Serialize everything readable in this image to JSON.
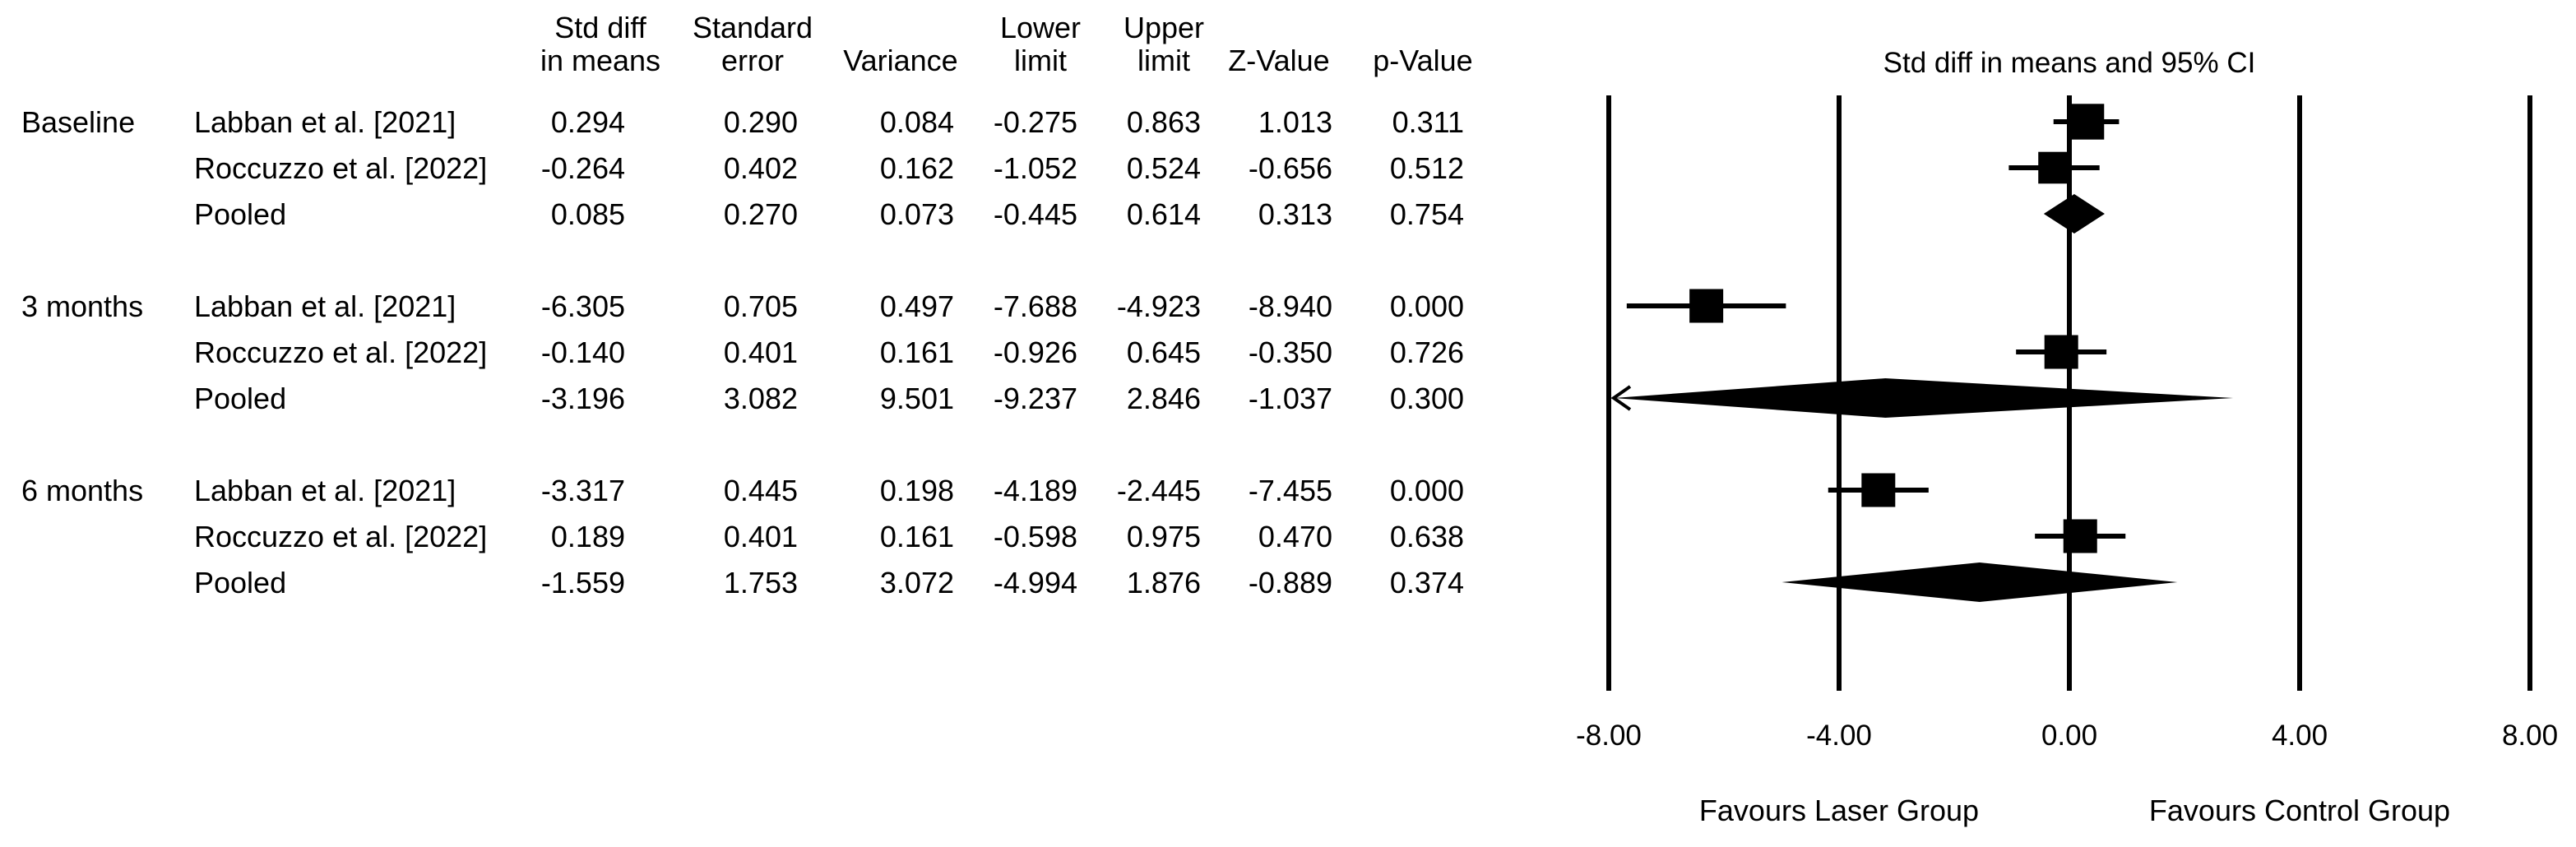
{
  "table": {
    "headers": {
      "std_diff": [
        "Std diff",
        "in means"
      ],
      "se": [
        "Standard",
        "error"
      ],
      "variance": [
        "Variance"
      ],
      "lower": [
        "Lower",
        "limit"
      ],
      "upper": [
        "Upper",
        "limit"
      ],
      "z": [
        "Z-Value"
      ],
      "p": [
        "p-Value"
      ]
    },
    "groups": [
      {
        "label": "Baseline",
        "rows": [
          {
            "study": "Labban et al. [2021]",
            "std_diff": "0.294",
            "se": "0.290",
            "variance": "0.084",
            "lower": "-0.275",
            "upper": "0.863",
            "z": "1.013",
            "p": "0.311"
          },
          {
            "study": "Roccuzzo et al. [2022]",
            "std_diff": "-0.264",
            "se": "0.402",
            "variance": "0.162",
            "lower": "-1.052",
            "upper": "0.524",
            "z": "-0.656",
            "p": "0.512"
          },
          {
            "study": "Pooled",
            "std_diff": "0.085",
            "se": "0.270",
            "variance": "0.073",
            "lower": "-0.445",
            "upper": "0.614",
            "z": "0.313",
            "p": "0.754"
          }
        ]
      },
      {
        "label": "3 months",
        "rows": [
          {
            "study": "Labban et al. [2021]",
            "std_diff": "-6.305",
            "se": "0.705",
            "variance": "0.497",
            "lower": "-7.688",
            "upper": "-4.923",
            "z": "-8.940",
            "p": "0.000"
          },
          {
            "study": "Roccuzzo et al. [2022]",
            "std_diff": "-0.140",
            "se": "0.401",
            "variance": "0.161",
            "lower": "-0.926",
            "upper": "0.645",
            "z": "-0.350",
            "p": "0.726"
          },
          {
            "study": "Pooled",
            "std_diff": "-3.196",
            "se": "3.082",
            "variance": "9.501",
            "lower": "-9.237",
            "upper": "2.846",
            "z": "-1.037",
            "p": "0.300"
          }
        ]
      },
      {
        "label": "6 months",
        "rows": [
          {
            "study": "Labban et al. [2021]",
            "std_diff": "-3.317",
            "se": "0.445",
            "variance": "0.198",
            "lower": "-4.189",
            "upper": "-2.445",
            "z": "-7.455",
            "p": "0.000"
          },
          {
            "study": "Roccuzzo et al. [2022]",
            "std_diff": "0.189",
            "se": "0.401",
            "variance": "0.161",
            "lower": "-0.598",
            "upper": "0.975",
            "z": "0.470",
            "p": "0.638"
          },
          {
            "study": "Pooled",
            "std_diff": "-1.559",
            "se": "1.753",
            "variance": "3.072",
            "lower": "-4.994",
            "upper": "1.876",
            "z": "-0.889",
            "p": "0.374"
          }
        ]
      }
    ]
  },
  "chart_data": {
    "type": "forest",
    "title": "Std diff in means and 95% CI",
    "xlim": [
      -8,
      8
    ],
    "x_ticks": [
      "-8.00",
      "-4.00",
      "0.00",
      "4.00",
      "8.00"
    ],
    "x_tick_values": [
      -8,
      -4,
      0,
      4,
      8
    ],
    "favours_left": "Favours Laser Group",
    "favours_right": "Favours Control Group",
    "marker_color": "#000000",
    "studies": [
      {
        "group": "Baseline",
        "label": "Labban et al. [2021]",
        "estimate": 0.294,
        "lower": -0.275,
        "upper": 0.863,
        "weight": 0.58,
        "kind": "study"
      },
      {
        "group": "Baseline",
        "label": "Roccuzzo et al. [2022]",
        "estimate": -0.264,
        "lower": -1.052,
        "upper": 0.524,
        "weight": 0.42,
        "kind": "study"
      },
      {
        "group": "Baseline",
        "label": "Pooled",
        "estimate": 0.085,
        "lower": -0.445,
        "upper": 0.614,
        "kind": "pooled"
      },
      {
        "group": "3 months",
        "label": "Labban et al. [2021]",
        "estimate": -6.305,
        "lower": -7.688,
        "upper": -4.923,
        "weight": 0.5,
        "kind": "study"
      },
      {
        "group": "3 months",
        "label": "Roccuzzo et al. [2022]",
        "estimate": -0.14,
        "lower": -0.926,
        "upper": 0.645,
        "weight": 0.5,
        "kind": "study"
      },
      {
        "group": "3 months",
        "label": "Pooled",
        "estimate": -3.196,
        "lower": -9.237,
        "upper": 2.846,
        "kind": "pooled",
        "arrow_left": true
      },
      {
        "group": "6 months",
        "label": "Labban et al. [2021]",
        "estimate": -3.317,
        "lower": -4.189,
        "upper": -2.445,
        "weight": 0.5,
        "kind": "study"
      },
      {
        "group": "6 months",
        "label": "Roccuzzo et al. [2022]",
        "estimate": 0.189,
        "lower": -0.598,
        "upper": 0.975,
        "weight": 0.5,
        "kind": "study"
      },
      {
        "group": "6 months",
        "label": "Pooled",
        "estimate": -1.559,
        "lower": -4.994,
        "upper": 1.876,
        "kind": "pooled"
      }
    ]
  }
}
